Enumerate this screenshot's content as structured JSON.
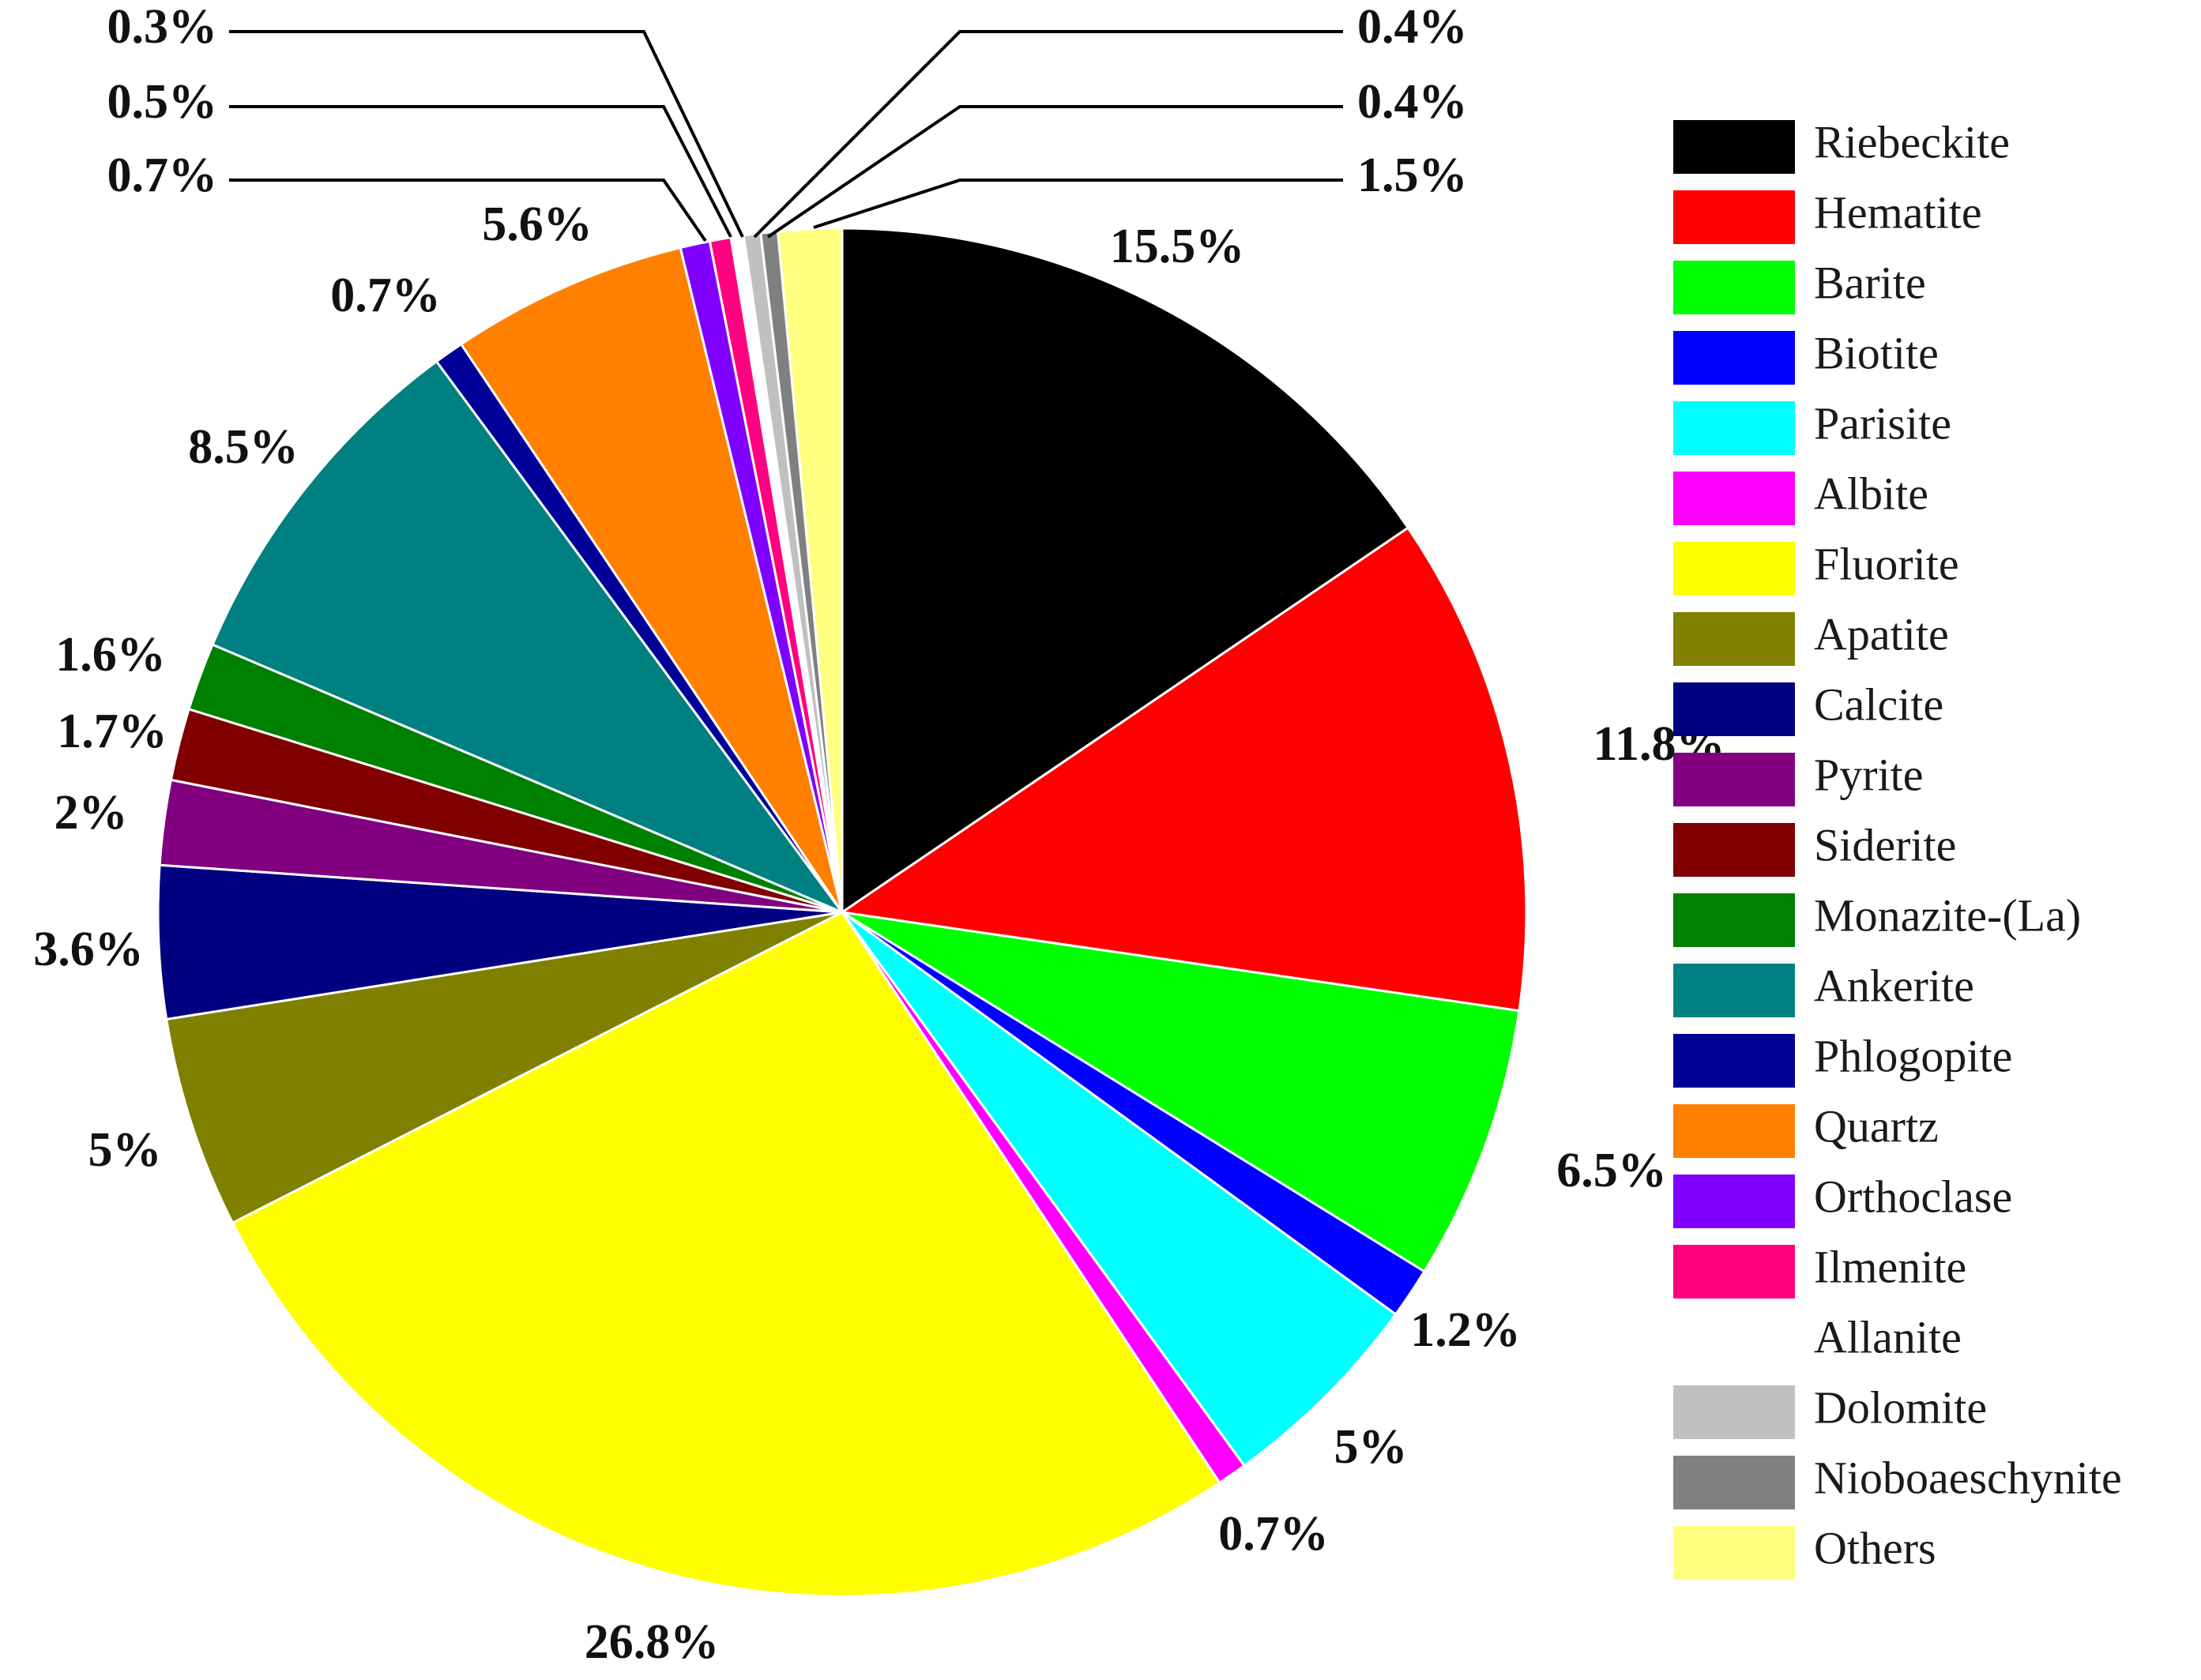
{
  "chart_data": {
    "type": "pie",
    "title": "",
    "start_angle_deg": 0,
    "direction": "clockwise",
    "legend_position": "right",
    "slices": [
      {
        "label": "Riebeckite",
        "value": 15.5,
        "display": "15.5%",
        "color": "#000000"
      },
      {
        "label": "Hematite",
        "value": 11.8,
        "display": "11.8%",
        "color": "#ff0000"
      },
      {
        "label": "Barite",
        "value": 6.5,
        "display": "6.5%",
        "color": "#00ff00"
      },
      {
        "label": "Biotite",
        "value": 1.2,
        "display": "1.2%",
        "color": "#0000ff"
      },
      {
        "label": "Parisite",
        "value": 5,
        "display": "5%",
        "color": "#00ffff"
      },
      {
        "label": "Albite",
        "value": 0.7,
        "display": "0.7%",
        "color": "#ff00ff"
      },
      {
        "label": "Fluorite",
        "value": 26.8,
        "display": "26.8%",
        "color": "#ffff00"
      },
      {
        "label": "Apatite",
        "value": 5,
        "display": "5%",
        "color": "#808000"
      },
      {
        "label": "Calcite",
        "value": 3.6,
        "display": "3.6%",
        "color": "#000080"
      },
      {
        "label": "Pyrite",
        "value": 2,
        "display": "2%",
        "color": "#800080"
      },
      {
        "label": "Siderite",
        "value": 1.7,
        "display": "1.7%",
        "color": "#800000"
      },
      {
        "label": "Monazite-(La)",
        "value": 1.6,
        "display": "1.6%",
        "color": "#008000"
      },
      {
        "label": "Ankerite",
        "value": 8.5,
        "display": "8.5%",
        "color": "#008080"
      },
      {
        "label": "Phlogopite",
        "value": 0.7,
        "display": "0.7%",
        "color": "#000099"
      },
      {
        "label": "Quartz",
        "value": 5.6,
        "display": "5.6%",
        "color": "#ff8000"
      },
      {
        "label": "Orthoclase",
        "value": 0.7,
        "display": "0.7%",
        "color": "#8000ff"
      },
      {
        "label": "Ilmenite",
        "value": 0.5,
        "display": "0.5%",
        "color": "#ff0080"
      },
      {
        "label": "Allanite",
        "value": 0.3,
        "display": "0.3%",
        "color": "#ffffff"
      },
      {
        "label": "Dolomite",
        "value": 0.4,
        "display": "0.4%",
        "color": "#c0c0c0"
      },
      {
        "label": "Nioboaeschynite",
        "value": 0.4,
        "display": "0.4%",
        "color": "#808080"
      },
      {
        "label": "Others",
        "value": 1.5,
        "display": "1.5%",
        "color": "#ffff80"
      }
    ]
  }
}
